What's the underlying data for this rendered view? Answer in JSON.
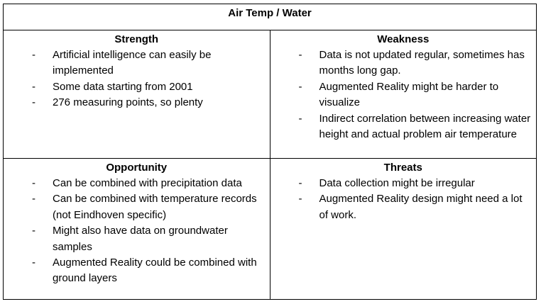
{
  "title": "Air Temp / Water",
  "quadrants": {
    "strength": {
      "heading": "Strength",
      "items": [
        "Artificial intelligence can easily be implemented",
        "Some data starting from 2001",
        "276 measuring points, so plenty"
      ]
    },
    "weakness": {
      "heading": "Weakness",
      "items": [
        "Data is not updated regular, sometimes has months long gap.",
        "Augmented Reality might be harder to visualize",
        "Indirect correlation between increasing water height and actual problem air temperature"
      ]
    },
    "opportunity": {
      "heading": "Opportunity",
      "items": [
        "Can be combined with precipitation data",
        "Can be combined with temperature records (not Eindhoven specific)",
        "Might also have data on groundwater samples",
        "Augmented Reality could be combined with ground layers"
      ]
    },
    "threats": {
      "heading": "Threats",
      "items": [
        "Data collection might be irregular",
        "Augmented Reality design might need a lot of work."
      ]
    }
  },
  "bullet_marker": "-"
}
